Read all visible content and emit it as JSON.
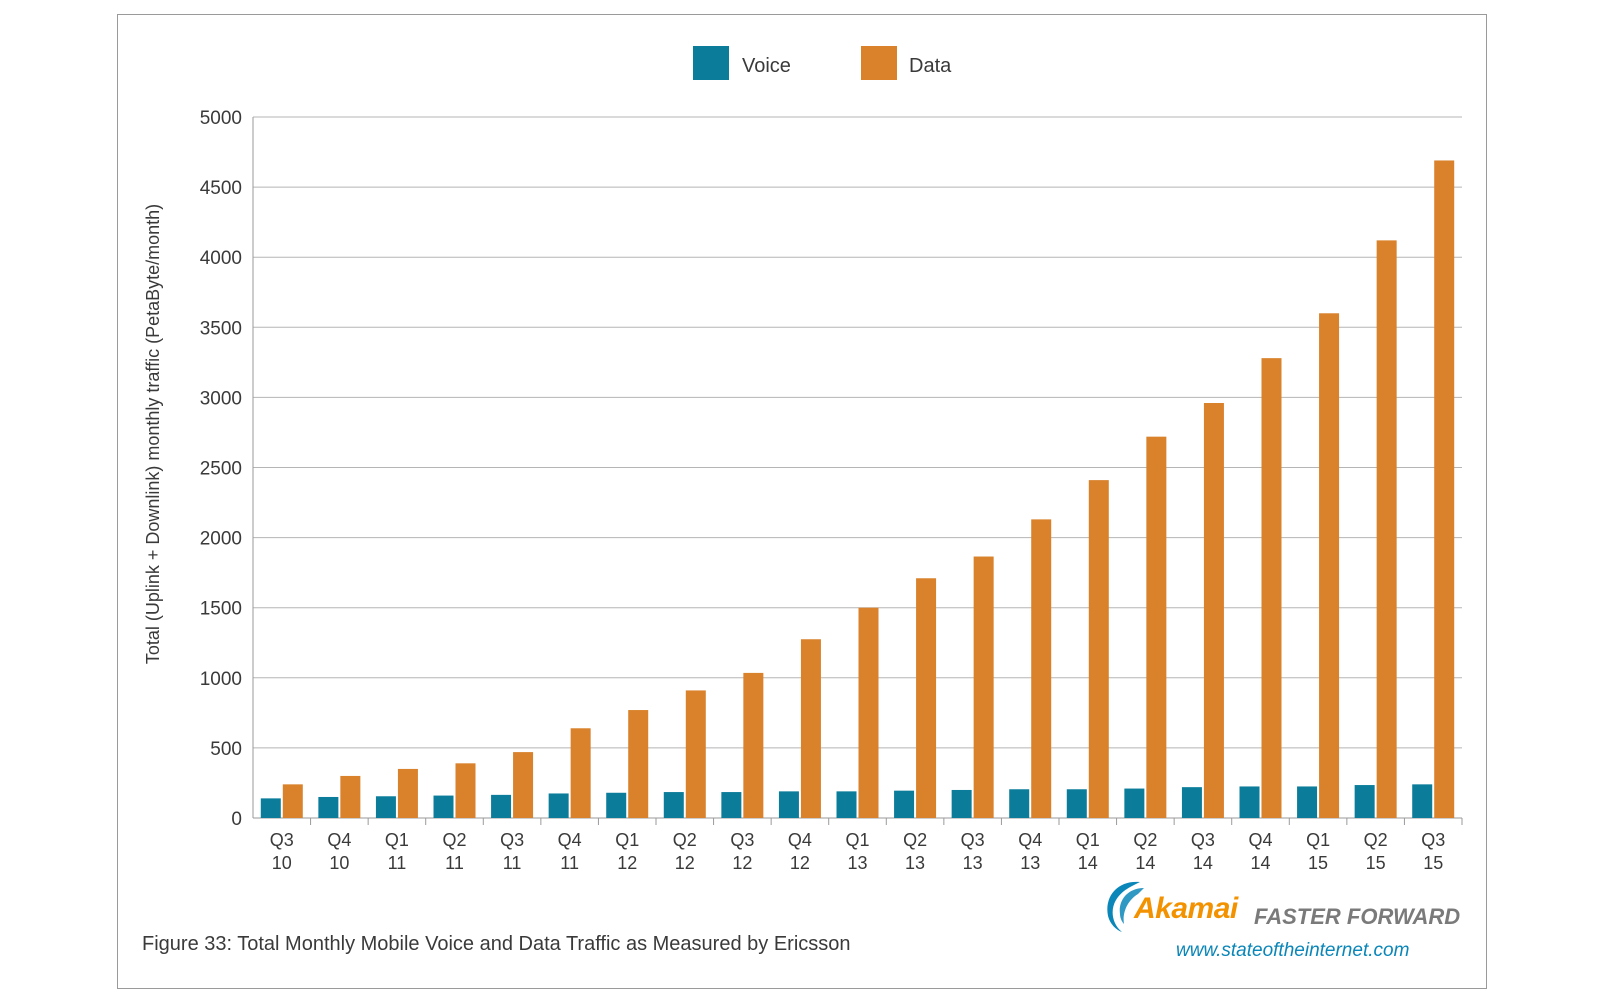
{
  "caption": "Figure 33: Total Monthly Mobile Voice and Data Traffic as Measured by Ericsson",
  "brand": {
    "logo_text": "Akamai",
    "tagline": "FASTER FORWARD",
    "url": "www.stateoftheinternet.com"
  },
  "colors": {
    "voice": "#0b7d9a",
    "data": "#d9822b",
    "grid": "#b5b5b5",
    "axis": "#9a9a9a",
    "brand_orange": "#f39200",
    "brand_blue": "#0a86b8"
  },
  "chart_data": {
    "type": "bar",
    "title": "",
    "xlabel": "",
    "ylabel": "Total (Uplink + Downlink) monthly traffic (PetaByte/month)",
    "ylim": [
      0,
      5000
    ],
    "yticks": [
      0,
      500,
      1000,
      1500,
      2000,
      2500,
      3000,
      3500,
      4000,
      4500,
      5000
    ],
    "grid": true,
    "legend_position": "top-center",
    "categories": [
      {
        "q": "Q3",
        "y": "10"
      },
      {
        "q": "Q4",
        "y": "10"
      },
      {
        "q": "Q1",
        "y": "11"
      },
      {
        "q": "Q2",
        "y": "11"
      },
      {
        "q": "Q3",
        "y": "11"
      },
      {
        "q": "Q4",
        "y": "11"
      },
      {
        "q": "Q1",
        "y": "12"
      },
      {
        "q": "Q2",
        "y": "12"
      },
      {
        "q": "Q3",
        "y": "12"
      },
      {
        "q": "Q4",
        "y": "12"
      },
      {
        "q": "Q1",
        "y": "13"
      },
      {
        "q": "Q2",
        "y": "13"
      },
      {
        "q": "Q3",
        "y": "13"
      },
      {
        "q": "Q4",
        "y": "13"
      },
      {
        "q": "Q1",
        "y": "14"
      },
      {
        "q": "Q2",
        "y": "14"
      },
      {
        "q": "Q3",
        "y": "14"
      },
      {
        "q": "Q4",
        "y": "14"
      },
      {
        "q": "Q1",
        "y": "15"
      },
      {
        "q": "Q2",
        "y": "15"
      },
      {
        "q": "Q3",
        "y": "15"
      }
    ],
    "series": [
      {
        "name": "Voice",
        "values": [
          140,
          150,
          155,
          160,
          165,
          175,
          180,
          185,
          185,
          190,
          190,
          195,
          200,
          205,
          205,
          210,
          220,
          225,
          225,
          235,
          240
        ]
      },
      {
        "name": "Data",
        "values": [
          240,
          300,
          350,
          390,
          470,
          640,
          770,
          910,
          1035,
          1275,
          1500,
          1710,
          1865,
          2130,
          2410,
          2720,
          2960,
          3280,
          3600,
          4120,
          4690
        ]
      }
    ]
  }
}
